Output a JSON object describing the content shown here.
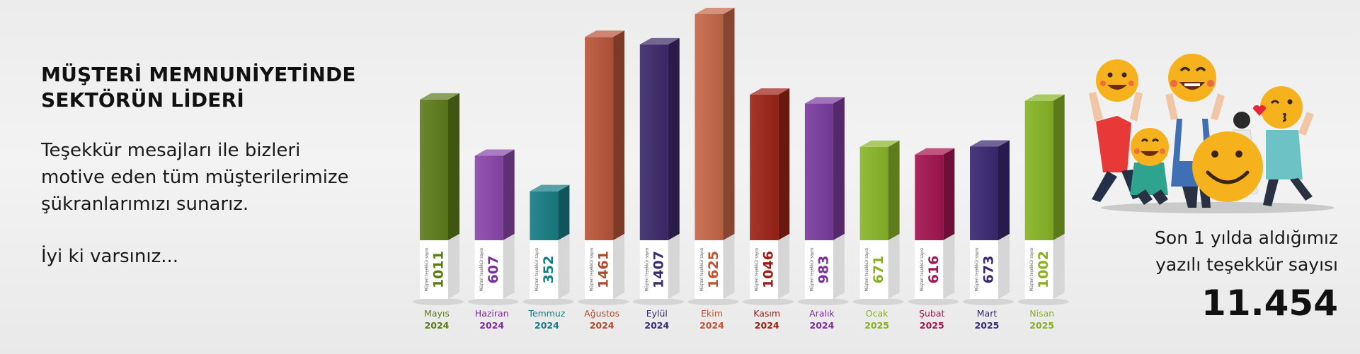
{
  "headline": {
    "line1": "MÜŞTERİ MEMNUNİYETİNDE",
    "line2": "SEKTÖRÜN LİDERİ"
  },
  "body": {
    "line1": "Teşekkür mesajları ile bizleri",
    "line2": "motive eden tüm müşterilerimize",
    "line3": "şükranlarımızı sunarız.",
    "closing": "İyi ki varsınız..."
  },
  "total": {
    "label_line1": "Son 1 yılda aldığımız",
    "label_line2": "yazılı teşekkür sayısı",
    "value": "11.454"
  },
  "illustration": {
    "icons": [
      "smiley-emoji-icon",
      "laughing-emoji-icon",
      "kiss-emoji-icon",
      "happy-emoji-icon",
      "big-smiley-emoji-icon"
    ]
  },
  "chart_data": {
    "type": "bar",
    "categories": [
      "Mayıs",
      "Haziran",
      "Temmuz",
      "Ağustos",
      "Eylül",
      "Ekim",
      "Kasım",
      "Aralık",
      "Ocak",
      "Şubat",
      "Mart",
      "Nisan"
    ],
    "years": [
      "2024",
      "2024",
      "2024",
      "2024",
      "2024",
      "2024",
      "2024",
      "2024",
      "2025",
      "2025",
      "2025",
      "2025"
    ],
    "values": [
      1011,
      607,
      352,
      1461,
      1407,
      1625,
      1046,
      983,
      671,
      616,
      673,
      1002
    ],
    "bar_tag": "Müşteri teşekkür sayısı",
    "colors": [
      "#5f7d1c",
      "#8b47ab",
      "#177d85",
      "#b9553a",
      "#3c2a6a",
      "#c56748",
      "#9e2418",
      "#7a3c9e",
      "#8ab629",
      "#a3154f",
      "#3a2872",
      "#87b426"
    ],
    "label_colors": [
      "#5a7a12",
      "#7b2d9b",
      "#167c86",
      "#b14a2c",
      "#3a2a6f",
      "#c15232",
      "#9b1c12",
      "#7b2d9b",
      "#86b01e",
      "#a3154f",
      "#3a2872",
      "#86b01e"
    ],
    "ylim": [
      0,
      1625
    ],
    "title": "",
    "xlabel": "",
    "ylabel": ""
  }
}
